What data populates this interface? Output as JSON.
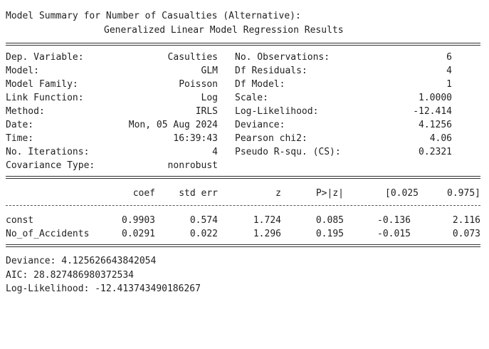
{
  "title": "Model Summary for Number of Casualties (Alternative):",
  "subtitle": "Generalized Linear Model Regression Results",
  "left_rows": [
    {
      "key": "Dep. Variable:",
      "value": "Casulties"
    },
    {
      "key": "Model:",
      "value": "GLM"
    },
    {
      "key": "Model Family:",
      "value": "Poisson"
    },
    {
      "key": "Link Function:",
      "value": "Log"
    },
    {
      "key": "Method:",
      "value": "IRLS"
    },
    {
      "key": "Date:",
      "value": "Mon, 05 Aug 2024"
    },
    {
      "key": "Time:",
      "value": "16:39:43"
    },
    {
      "key": "No. Iterations:",
      "value": "4"
    },
    {
      "key": "Covariance Type:",
      "value": "nonrobust"
    }
  ],
  "right_rows": [
    {
      "key": "No. Observations:",
      "value": "6"
    },
    {
      "key": "Df Residuals:",
      "value": "4"
    },
    {
      "key": "Df Model:",
      "value": "1"
    },
    {
      "key": "Scale:",
      "value": "1.0000"
    },
    {
      "key": "Log-Likelihood:",
      "value": "-12.414"
    },
    {
      "key": "Deviance:",
      "value": "4.1256"
    },
    {
      "key": "Pearson chi2:",
      "value": "4.06"
    },
    {
      "key": "Pseudo R-squ. (CS):",
      "value": "0.2321"
    }
  ],
  "coef_headers": [
    "coef",
    "std err",
    "z",
    "P>|z|",
    "[0.025",
    "0.975]"
  ],
  "coef_rows": [
    {
      "name": "const",
      "values": [
        "0.9903",
        "0.574",
        "1.724",
        "0.085",
        "-0.136",
        "2.116"
      ]
    },
    {
      "name": "No_of_Accidents",
      "values": [
        "0.0291",
        "0.022",
        "1.296",
        "0.195",
        "-0.015",
        "0.073"
      ]
    }
  ],
  "footer": [
    "Deviance: 4.125626643842054",
    "AIC: 28.827486980372534",
    "Log-Likelihood: -12.413743490186267"
  ]
}
